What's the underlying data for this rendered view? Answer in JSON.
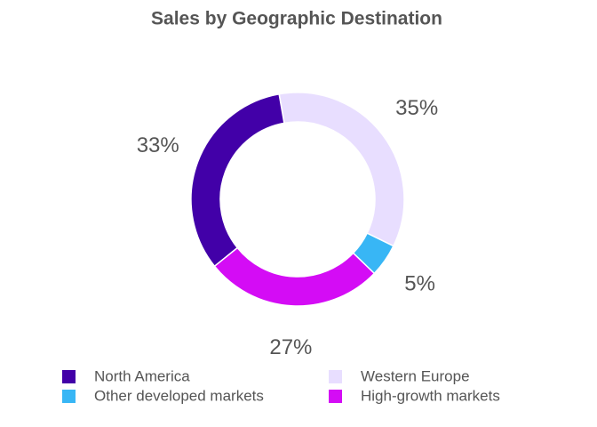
{
  "chart_data": {
    "type": "donut",
    "title": "Sales by Geographic Destination",
    "categories": [
      "Western Europe",
      "Other developed markets",
      "High-growth markets",
      "North America"
    ],
    "values": [
      35,
      5,
      27,
      33
    ],
    "value_labels": [
      "35%",
      "5%",
      "27%",
      "33%"
    ],
    "colors": [
      "#e8deff",
      "#38b6f5",
      "#d40cf5",
      "#4200a8"
    ],
    "legend_order": [
      3,
      0,
      1,
      2
    ],
    "legend": "bottom"
  }
}
